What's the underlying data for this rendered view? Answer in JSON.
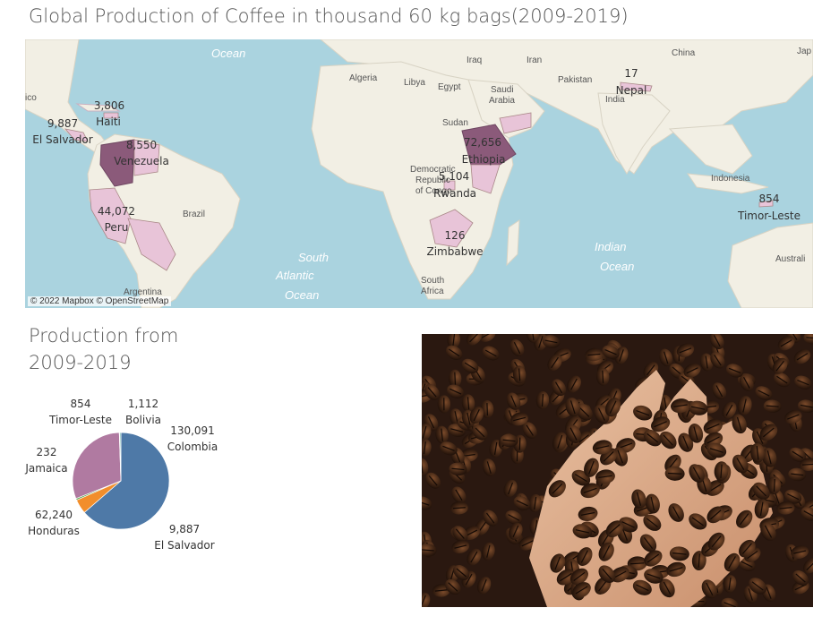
{
  "dashboard": {
    "title": "Global Production of Coffee in thousand 60 kg bags(2009-2019)"
  },
  "map": {
    "attribution": "© 2022 Mapbox © OpenStreetMap",
    "ocean_labels": [
      "Ocean",
      "South",
      "Atlantic",
      "Ocean",
      "Indian",
      "Ocean"
    ],
    "geo_labels": [
      "Iraq",
      "Iran",
      "China",
      "Jap",
      "Algeria",
      "Libya",
      "Egypt",
      "Saudi",
      "Arabia",
      "Pakistan",
      "India",
      "Sudan",
      "Democratic",
      "Republic",
      "of Congo",
      "Brazil",
      "Indonesia",
      "Australi",
      "South",
      "Africa",
      "ico",
      "Argentina"
    ],
    "countries": [
      {
        "name": "Haiti",
        "value": "3,806"
      },
      {
        "name": "El Salvador",
        "value": "9,887"
      },
      {
        "name": "Venezuela",
        "value": "8,550"
      },
      {
        "name": "Peru",
        "value": "44,072"
      },
      {
        "name": "Ethiopia",
        "value": "72,656"
      },
      {
        "name": "Rwanda",
        "value": "5,104"
      },
      {
        "name": "Zimbabwe",
        "value": "126"
      },
      {
        "name": "Nepal",
        "value": "17"
      },
      {
        "name": "Timor-Leste",
        "value": "854"
      }
    ],
    "colors": {
      "ocean": "#aad3df",
      "land": "#f2efe4",
      "highlight_light": "#e8c4d8",
      "highlight_dark": "#8b5a7a"
    }
  },
  "production": {
    "title_line1": "Production from",
    "title_line2": "2009-2019",
    "labels": [
      {
        "name": "Timor-Leste",
        "value": "854"
      },
      {
        "name": "Bolivia",
        "value": "1,112"
      },
      {
        "name": "Colombia",
        "value": "130,091"
      },
      {
        "name": "Jamaica",
        "value": "232"
      },
      {
        "name": "Honduras",
        "value": "62,240"
      },
      {
        "name": "El Salvador",
        "value": "9,887"
      }
    ]
  },
  "chart_data": {
    "type": "pie",
    "series": [
      {
        "name": "Colombia",
        "value": 130091,
        "color": "#4e79a7"
      },
      {
        "name": "El Salvador",
        "value": 9887,
        "color": "#f28e2b"
      },
      {
        "name": "Bolivia",
        "value": 1112,
        "color": "#59a14f"
      },
      {
        "name": "Honduras",
        "value": 62240,
        "color": "#b07aa1"
      },
      {
        "name": "Jamaica",
        "value": 232,
        "color": "#edc948"
      },
      {
        "name": "Timor-Leste",
        "value": 854,
        "color": "#76b7b2"
      }
    ]
  }
}
